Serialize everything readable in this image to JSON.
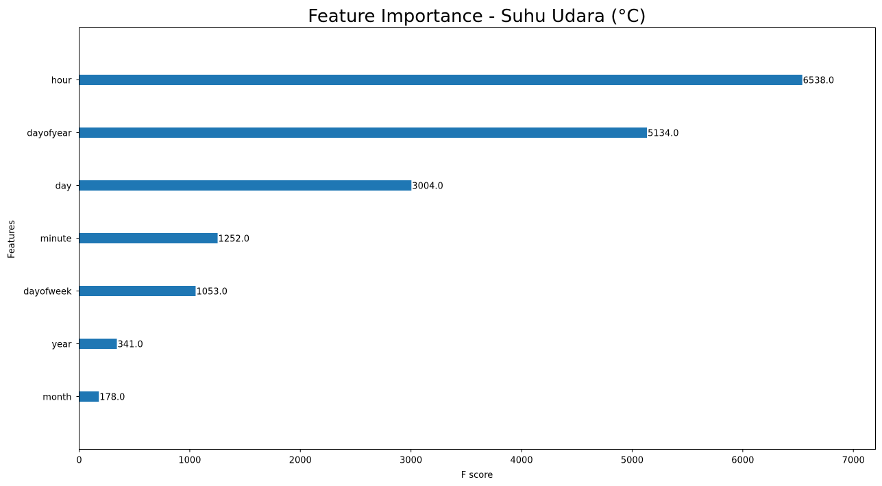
{
  "chart_data": {
    "type": "bar",
    "orientation": "horizontal",
    "title": "Feature Importance - Suhu Udara (°C)",
    "xlabel": "F score",
    "ylabel": "Features",
    "categories": [
      "hour",
      "dayofyear",
      "day",
      "minute",
      "dayofweek",
      "year",
      "month"
    ],
    "values": [
      6538.0,
      5134.0,
      3004.0,
      1252.0,
      1053.0,
      341.0,
      178.0
    ],
    "data_labels": [
      "6538.0",
      "5134.0",
      "3004.0",
      "1252.0",
      "1053.0",
      "341.0",
      "178.0"
    ],
    "xlim": [
      0,
      7200
    ],
    "xticks": [
      0,
      1000,
      2000,
      3000,
      4000,
      5000,
      6000,
      7000
    ],
    "xtick_labels": [
      "0",
      "1000",
      "2000",
      "3000",
      "4000",
      "5000",
      "6000",
      "7000"
    ],
    "grid": false,
    "legend": "none",
    "bar_color": "#1f77b4"
  }
}
